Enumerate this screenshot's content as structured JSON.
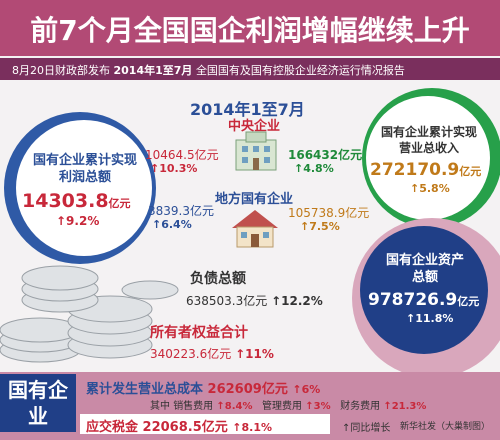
{
  "header": {
    "title": "前7个月全国国企利润增幅继续上升",
    "subtitle_prefix": "8月20日财政部发布",
    "subtitle_period": "2014年1至7月",
    "subtitle_suffix": "全国国有及国有控股企业经济运行情况报告"
  },
  "period": "2014年1至7月",
  "profit": {
    "label": "国有企业累计实现利润总额",
    "value": "14303.8",
    "unit": "亿元",
    "growth": "↑9.2%"
  },
  "central": {
    "label": "中央企业",
    "profit": "10464.5亿元",
    "profit_growth": "↑10.3%",
    "revenue": "166432亿元",
    "revenue_growth": "↑4.8%"
  },
  "local": {
    "label": "地方国有企业",
    "profit": "3839.3亿元",
    "profit_growth": "↑6.4%",
    "revenue": "105738.9亿元",
    "revenue_growth": "↑7.5%"
  },
  "revenue": {
    "label": "国有企业累计实现营业总收入",
    "value": "272170.9",
    "unit": "亿元",
    "growth": "↑5.8%"
  },
  "liabilities": {
    "label": "负债总额",
    "value": "638503.3亿元",
    "growth": "↑12.2%"
  },
  "equity": {
    "label": "所有者权益合计",
    "value": "340223.6亿元",
    "growth": "↑11%"
  },
  "assets": {
    "label": "国有企业资产总额",
    "value": "978726.9",
    "unit": "亿元",
    "growth": "↑11.8%"
  },
  "bottom": {
    "label": "国有企业",
    "cost_label": "累计发生营业总成本",
    "cost_value": "262609亿元",
    "cost_growth": "↑6%",
    "expenses_prefix": "其中",
    "expenses": [
      {
        "name": "销售费用",
        "growth": "↑8.4%"
      },
      {
        "name": "管理费用",
        "growth": "↑3%"
      },
      {
        "name": "财务费用",
        "growth": "↑21.3%"
      }
    ],
    "tax_label": "应交税金",
    "tax_value": "22068.5亿元",
    "tax_growth": "↑8.1%",
    "legend": "↑同比增长",
    "credit": "新华社发（大巢制图）"
  }
}
